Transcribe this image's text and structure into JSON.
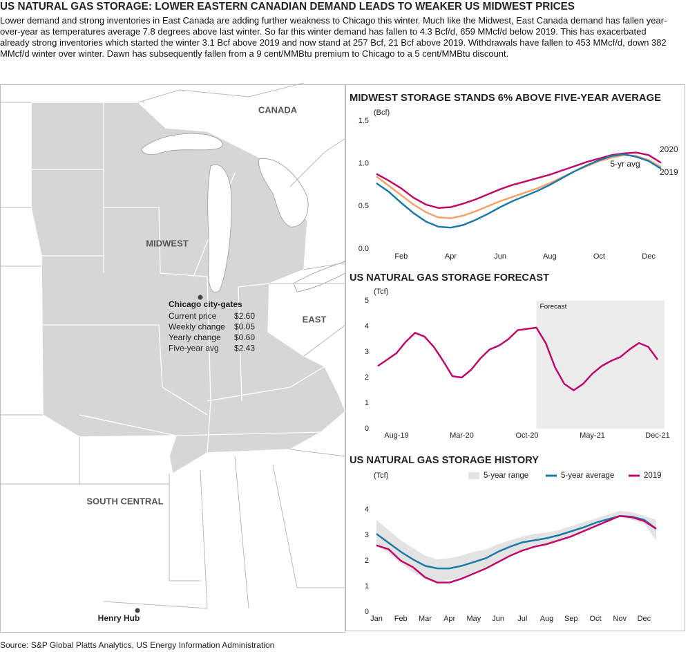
{
  "header": {
    "title": "US NATURAL GAS STORAGE: LOWER EASTERN CANADIAN DEMAND LEADS TO WEAKER US MIDWEST PRICES",
    "text": "Lower demand and strong inventories in East Canada are adding further weakness to Chicago this winter. Much like the Midwest, East Canada demand has fallen year-over-year as temperatures average 7.8 degrees above last winter. So far this winter demand has fallen to 4.3 Bcf/d, 659 MMcf/d below 2019. This has exacerbated already strong inventories which started the winter 3.1 Bcf above 2019 and now stand at 257 Bcf, 21 Bcf above 2019. Withdrawals have fallen to 453 MMcf/d, down 382 MMcf/d winter over winter. Dawn has subsequently fallen from a 9 cent/MMBtu premium to Chicago to a 5 cent/MMBtu discount."
  },
  "map": {
    "regions": [
      "CANADA",
      "MIDWEST",
      "EAST",
      "SOUTH CENTRAL"
    ],
    "hub": "Henry Hub",
    "chicago": {
      "title": "Chicago city-gates",
      "rows": [
        [
          "Current price",
          "$2.60"
        ],
        [
          "Weekly change",
          "$0.05"
        ],
        [
          "Yearly change",
          "$0.60"
        ],
        [
          "Five-year avg",
          "$2.43"
        ]
      ]
    }
  },
  "chart_data": [
    {
      "type": "line",
      "title": "MIDWEST STORAGE STANDS 6% ABOVE FIVE-YEAR AVERAGE",
      "y_label": "(Bcf)",
      "categories": [
        null,
        null,
        "Feb",
        null,
        null,
        null,
        "Apr",
        null,
        null,
        null,
        "Jun",
        null,
        null,
        null,
        "Aug",
        null,
        null,
        null,
        "Oct",
        null,
        null,
        null,
        "Dec",
        null
      ],
      "series": [
        {
          "name": "2020",
          "color": "#c0086a",
          "values": [
            0.88,
            0.8,
            0.71,
            0.6,
            0.52,
            0.48,
            0.49,
            0.53,
            0.58,
            0.64,
            0.7,
            0.75,
            0.79,
            0.83,
            0.87,
            0.92,
            0.97,
            1.02,
            1.06,
            1.1,
            1.12,
            1.13,
            1.1,
            1.01
          ]
        },
        {
          "name": "5-yr avg",
          "color": "#f4a26b",
          "values": [
            0.85,
            0.74,
            0.63,
            0.52,
            0.43,
            0.37,
            0.36,
            0.39,
            0.44,
            0.5,
            0.56,
            0.61,
            0.66,
            0.71,
            0.77,
            0.84,
            0.91,
            0.97,
            1.03,
            1.07,
            1.1,
            1.09,
            1.04,
            0.96
          ]
        },
        {
          "name": "2019",
          "color": "#1a7aa8",
          "values": [
            0.77,
            0.67,
            0.54,
            0.42,
            0.32,
            0.26,
            0.25,
            0.28,
            0.34,
            0.41,
            0.49,
            0.56,
            0.62,
            0.68,
            0.75,
            0.83,
            0.91,
            0.98,
            1.04,
            1.09,
            1.11,
            1.08,
            1.03,
            0.94
          ]
        }
      ],
      "ylim": [
        0,
        1.5
      ],
      "yticks": [
        {
          "value": 0,
          "label": "0.0"
        },
        0.5,
        {
          "value": 1,
          "label": "1.0"
        },
        1.5
      ]
    },
    {
      "type": "line",
      "title": "US NATURAL GAS STORAGE FORECAST",
      "y_label": "(Tcf)",
      "annotation": "Forecast",
      "shade_from": 17,
      "color": "#c0086a",
      "categories": [
        null,
        null,
        "Aug-19",
        null,
        null,
        null,
        null,
        null,
        null,
        "Mar-20",
        null,
        null,
        null,
        null,
        null,
        null,
        "Oct-20",
        null,
        null,
        null,
        null,
        null,
        null,
        "May-21",
        null,
        null,
        null,
        null,
        null,
        null,
        "Dec-21"
      ],
      "values": [
        2.45,
        2.7,
        2.95,
        3.4,
        3.75,
        3.6,
        3.2,
        2.65,
        2.05,
        2.0,
        2.3,
        2.75,
        3.1,
        3.25,
        3.5,
        3.85,
        3.9,
        3.95,
        3.35,
        2.4,
        1.75,
        1.5,
        1.75,
        2.15,
        2.45,
        2.65,
        2.8,
        3.1,
        3.35,
        3.2,
        2.7
      ],
      "ylim": [
        0,
        5
      ],
      "yticks": [
        0,
        1,
        2,
        3,
        4,
        5
      ]
    },
    {
      "type": "line",
      "title": "US NATURAL GAS STORAGE HISTORY",
      "y_label": "(Tcf)",
      "categories": [
        "Jan",
        null,
        "Feb",
        null,
        "Mar",
        null,
        "Apr",
        null,
        "May",
        null,
        "Jun",
        null,
        "Jul",
        null,
        "Aug",
        null,
        "Sep",
        null,
        "Oct",
        null,
        "Nov",
        null,
        "Dec",
        null
      ],
      "series": [
        {
          "name": "5-year range",
          "color": "#e3e3e3",
          "low": [
            2.6,
            2.3,
            1.9,
            1.55,
            1.3,
            1.2,
            1.25,
            1.35,
            1.55,
            1.75,
            2.0,
            2.25,
            2.45,
            2.6,
            2.7,
            2.8,
            2.95,
            3.15,
            3.35,
            3.55,
            3.7,
            3.6,
            3.45,
            2.8
          ],
          "high": [
            3.6,
            3.2,
            2.8,
            2.5,
            2.2,
            2.05,
            2.1,
            2.2,
            2.35,
            2.45,
            2.65,
            2.8,
            2.95,
            3.05,
            3.1,
            3.2,
            3.35,
            3.5,
            3.65,
            3.8,
            3.95,
            3.9,
            3.75,
            3.6
          ]
        },
        {
          "name": "5-year average",
          "color": "#1a7aa8",
          "values": [
            3.05,
            2.7,
            2.35,
            2.05,
            1.8,
            1.7,
            1.7,
            1.8,
            1.95,
            2.1,
            2.35,
            2.55,
            2.72,
            2.8,
            2.88,
            3.0,
            3.15,
            3.3,
            3.48,
            3.62,
            3.75,
            3.72,
            3.6,
            3.25
          ]
        },
        {
          "name": "2019",
          "color": "#c0086a",
          "values": [
            2.6,
            2.45,
            2.0,
            1.75,
            1.35,
            1.15,
            1.15,
            1.3,
            1.5,
            1.7,
            1.95,
            2.2,
            2.4,
            2.55,
            2.65,
            2.8,
            2.95,
            3.15,
            3.35,
            3.55,
            3.75,
            3.7,
            3.55,
            3.25
          ]
        }
      ],
      "ylim": [
        0,
        5
      ],
      "yticks": [
        0,
        1,
        2,
        3,
        4
      ]
    }
  ],
  "source": "Source: S&P Global Platts Analytics, US Energy Information Administration"
}
